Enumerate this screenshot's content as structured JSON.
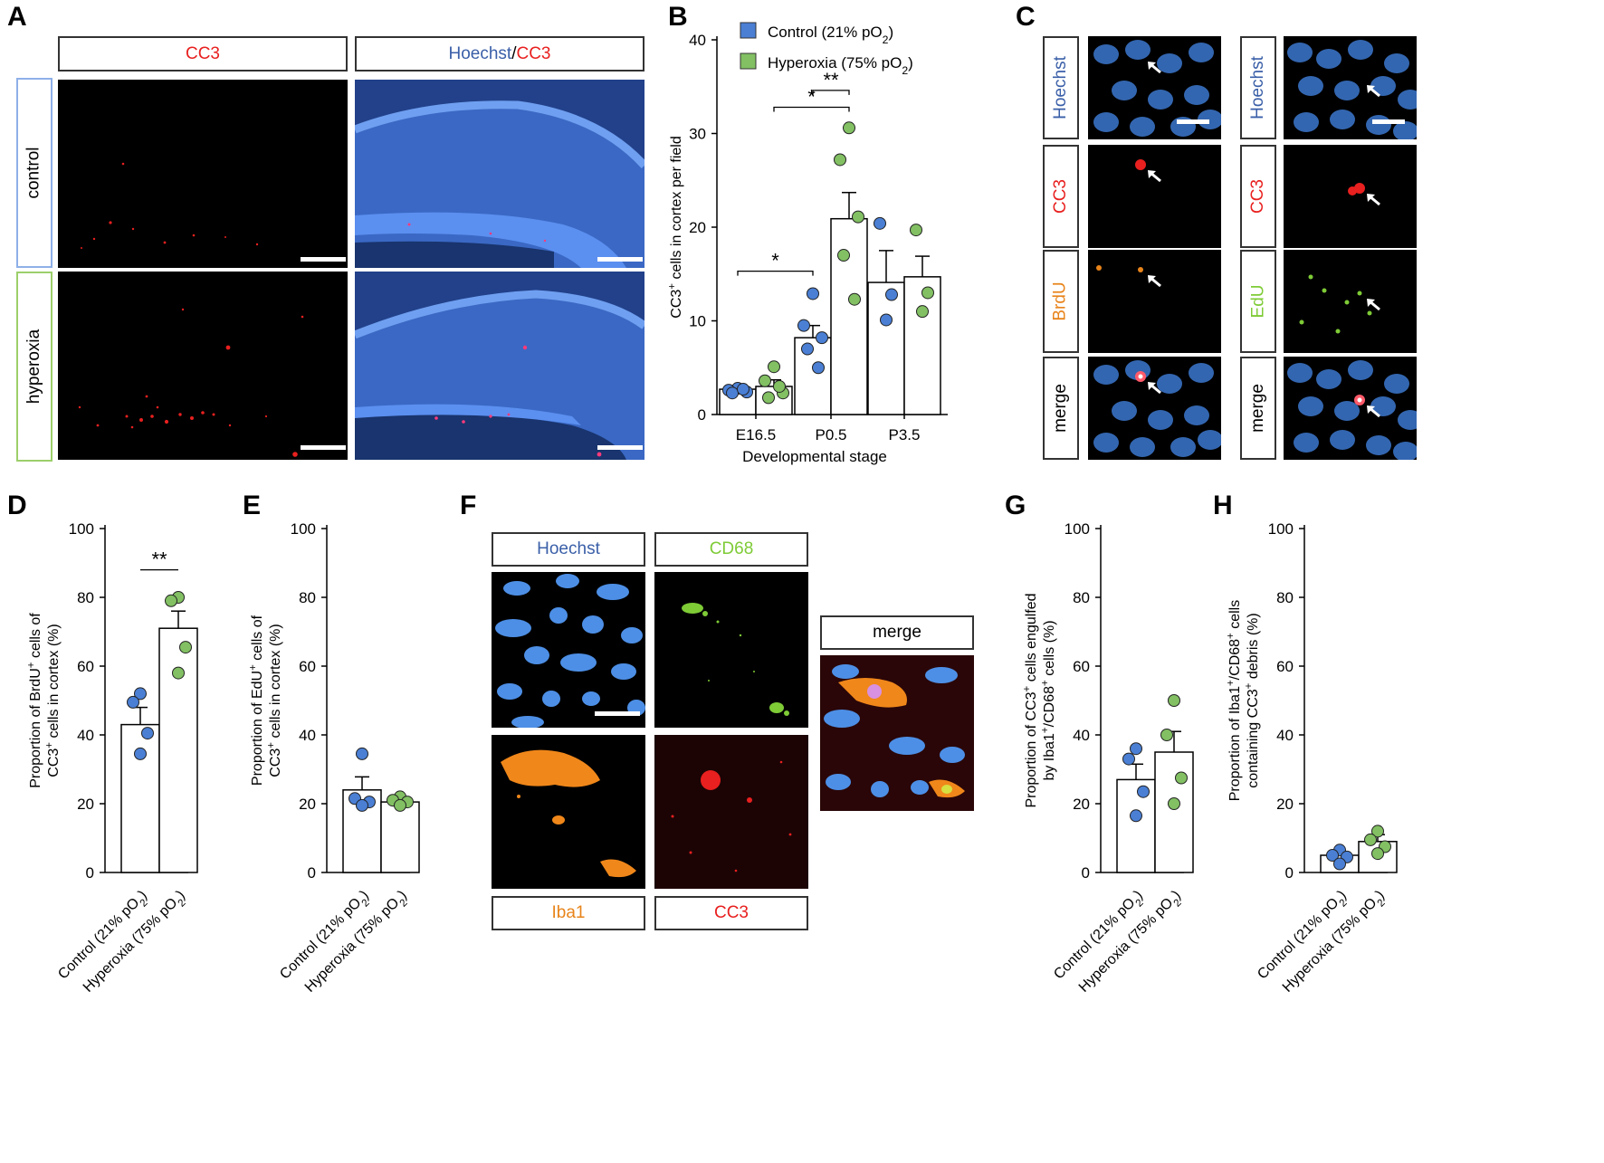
{
  "panel_letters": [
    "A",
    "B",
    "C",
    "D",
    "E",
    "F",
    "G",
    "H"
  ],
  "colors": {
    "blue": "#4a7fd4",
    "green": "#82c063",
    "red": "#e8201f",
    "orange": "#e8841a",
    "lime": "#7ecb36",
    "bluebox": "#8fb0e8",
    "greenbox": "#9ccf6b"
  },
  "panelA": {
    "col_cc3": "CC3",
    "col_hoechst": "Hoechst",
    "col_sep": " / ",
    "col_cc3b": "CC3",
    "row_control": "control",
    "row_hyperoxia": "hyperoxia"
  },
  "panelC": {
    "left": {
      "rows": [
        "Hoechst",
        "CC3",
        "BrdU",
        "merge"
      ]
    },
    "right": {
      "rows": [
        "Hoechst",
        "CC3",
        "EdU",
        "merge"
      ]
    }
  },
  "panelF": {
    "hoechst": "Hoechst",
    "cd68": "CD68",
    "merge": "merge",
    "iba1": "Iba1",
    "cc3": "CC3"
  },
  "chart_data": [
    {
      "panel": "B",
      "type": "bar",
      "categories": [
        "E16.5",
        "P0.5",
        "P3.5"
      ],
      "series": [
        {
          "name": "Control (21% pO2)",
          "values": [
            2.7,
            8.2,
            14.1
          ],
          "sem": [
            0.4,
            1.3,
            3.4
          ],
          "points": [
            [
              2.8,
              2.6,
              2.4,
              2.3,
              2.7
            ],
            [
              12.9,
              9.5,
              8.2,
              7.0,
              5.0
            ],
            [
              20.4,
              12.8,
              10.1
            ]
          ]
        },
        {
          "name": "Hyperoxia (75% pO2)",
          "values": [
            3.0,
            20.9,
            14.7
          ],
          "sem": [
            0.7,
            2.8,
            2.2
          ],
          "points": [
            [
              5.1,
              3.6,
              2.3,
              1.8,
              3.0
            ],
            [
              30.6,
              27.2,
              21.1,
              17.0,
              12.3
            ],
            [
              19.7,
              13.0,
              11.0
            ]
          ]
        }
      ],
      "ylabel": "CC3+ cells in cortex per field",
      "xlabel": "Developmental stage",
      "ylim": [
        0,
        40
      ],
      "yticks": [
        0,
        10,
        20,
        30,
        40
      ],
      "legend": [
        "Control (21% pO2)",
        "Hyperoxia (75% pO2)"
      ],
      "sig": [
        {
          "label": "*",
          "from": "E16.5 control",
          "to": "P0.5 control"
        },
        {
          "label": "*",
          "from": "E16.5 hyperoxia",
          "to": "P0.5 hyperoxia"
        },
        {
          "label": "**",
          "from": "P0.5 control",
          "to": "P0.5 hyperoxia"
        }
      ]
    },
    {
      "panel": "D",
      "type": "bar",
      "categories": [
        "Control (21% pO2)",
        "Hyperoxia (75% pO2)"
      ],
      "values": [
        43.0,
        71.0
      ],
      "sem": [
        5.0,
        5.0
      ],
      "points": [
        [
          52.0,
          49.5,
          40.5,
          34.5
        ],
        [
          80.0,
          79.0,
          65.5,
          58.0
        ]
      ],
      "ylabel": "Proportion of BrdU+ cells of CC3+ cells in cortex (%)",
      "ylim": [
        0,
        100
      ],
      "yticks": [
        0,
        20,
        40,
        60,
        80,
        100
      ],
      "sig": "**"
    },
    {
      "panel": "E",
      "type": "bar",
      "categories": [
        "Control (21% pO2)",
        "Hyperoxia (75% pO2)"
      ],
      "values": [
        24.0,
        20.5
      ],
      "sem": [
        3.8,
        0.8
      ],
      "points": [
        [
          34.5,
          21.5,
          20.5,
          19.5
        ],
        [
          22.0,
          21.0,
          20.5,
          19.5
        ]
      ],
      "ylabel": "Proportion of EdU+ cells of CC3+ cells in cortex (%)",
      "ylim": [
        0,
        100
      ],
      "yticks": [
        0,
        20,
        40,
        60,
        80,
        100
      ]
    },
    {
      "panel": "G",
      "type": "bar",
      "categories": [
        "Control (21% pO2)",
        "Hyperoxia (75% pO2)"
      ],
      "values": [
        27.0,
        35.0
      ],
      "sem": [
        4.5,
        6.0
      ],
      "points": [
        [
          36.0,
          33.0,
          23.5,
          16.5
        ],
        [
          50.0,
          40.0,
          27.5,
          20.0
        ]
      ],
      "ylabel": "Proportion of CC3+ cells engulfed by Iba1+/CD68+ cells (%)",
      "ylim": [
        0,
        100
      ],
      "yticks": [
        0,
        20,
        40,
        60,
        80,
        100
      ]
    },
    {
      "panel": "H",
      "type": "bar",
      "categories": [
        "Control (21% pO2)",
        "Hyperoxia (75% pO2)"
      ],
      "values": [
        5.0,
        9.0
      ],
      "sem": [
        1.0,
        2.0
      ],
      "points": [
        [
          6.5,
          5.0,
          4.5,
          2.5
        ],
        [
          12.0,
          9.5,
          7.5,
          5.5
        ]
      ],
      "ylabel": "Proportion of Iba1+/CD68+ cells containing CC3+ debris (%)",
      "ylim": [
        0,
        100
      ],
      "yticks": [
        0,
        20,
        40,
        60,
        80,
        100
      ]
    }
  ]
}
